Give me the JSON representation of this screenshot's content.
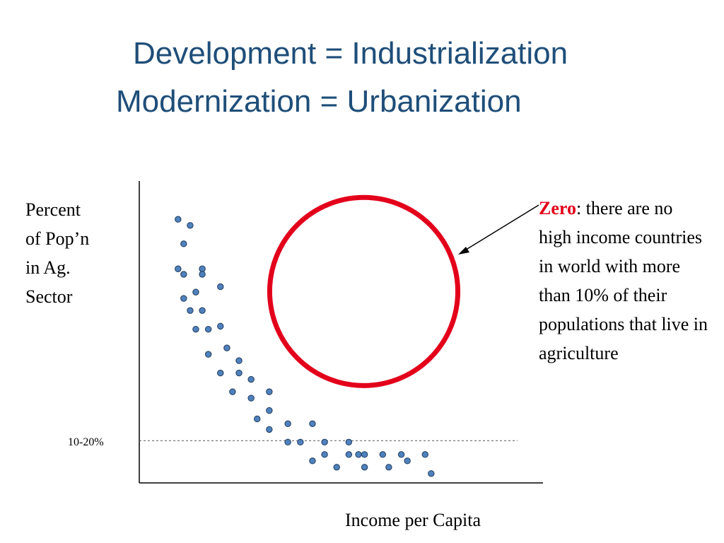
{
  "title": {
    "line1": "Development = Industrialization",
    "line2": "Modernization = Urbanization"
  },
  "chart_data": {
    "type": "scatter",
    "xlabel": "Income per Capita",
    "ylabel_lines": [
      "Percent",
      "of Pop’n",
      "in Ag.",
      "Sector"
    ],
    "xlim": [
      0,
      100
    ],
    "ylim": [
      0,
      100
    ],
    "reference_line": {
      "y": 14,
      "label": "10-20%"
    },
    "annotation": {
      "highlight": "Zero",
      "text": ": there are no high income countries in world with more than 10% of their populations that live in agriculture"
    },
    "highlight_circle": {
      "cx": 55.6,
      "cy": 63.4,
      "r": 23.3,
      "color": "#e3001b"
    },
    "point_color": "#4f81bd",
    "points": [
      {
        "x": 9.6,
        "y": 87.3
      },
      {
        "x": 12.6,
        "y": 85.3
      },
      {
        "x": 11.0,
        "y": 79.2
      },
      {
        "x": 9.6,
        "y": 70.9
      },
      {
        "x": 11.0,
        "y": 69.1
      },
      {
        "x": 15.6,
        "y": 70.9
      },
      {
        "x": 15.6,
        "y": 69.1
      },
      {
        "x": 20.1,
        "y": 65.0
      },
      {
        "x": 14.0,
        "y": 63.2
      },
      {
        "x": 11.0,
        "y": 61.1
      },
      {
        "x": 12.6,
        "y": 57.1
      },
      {
        "x": 15.6,
        "y": 57.1
      },
      {
        "x": 20.1,
        "y": 51.9
      },
      {
        "x": 14.0,
        "y": 50.9
      },
      {
        "x": 17.1,
        "y": 50.9
      },
      {
        "x": 21.7,
        "y": 44.7
      },
      {
        "x": 17.1,
        "y": 42.6
      },
      {
        "x": 24.7,
        "y": 40.5
      },
      {
        "x": 20.1,
        "y": 36.4
      },
      {
        "x": 24.7,
        "y": 36.4
      },
      {
        "x": 27.7,
        "y": 34.3
      },
      {
        "x": 23.1,
        "y": 30.2
      },
      {
        "x": 27.7,
        "y": 28.1
      },
      {
        "x": 32.2,
        "y": 30.2
      },
      {
        "x": 32.2,
        "y": 24.0
      },
      {
        "x": 29.2,
        "y": 21.2
      },
      {
        "x": 36.8,
        "y": 19.6
      },
      {
        "x": 32.2,
        "y": 17.7
      },
      {
        "x": 42.9,
        "y": 19.6
      },
      {
        "x": 36.8,
        "y": 13.5
      },
      {
        "x": 39.9,
        "y": 13.5
      },
      {
        "x": 45.9,
        "y": 13.5
      },
      {
        "x": 51.9,
        "y": 13.5
      },
      {
        "x": 42.9,
        "y": 7.3
      },
      {
        "x": 45.9,
        "y": 9.4
      },
      {
        "x": 48.9,
        "y": 5.2
      },
      {
        "x": 51.9,
        "y": 9.4
      },
      {
        "x": 54.3,
        "y": 9.4
      },
      {
        "x": 55.8,
        "y": 9.4
      },
      {
        "x": 55.8,
        "y": 5.2
      },
      {
        "x": 60.3,
        "y": 9.4
      },
      {
        "x": 61.8,
        "y": 5.2
      },
      {
        "x": 64.9,
        "y": 9.4
      },
      {
        "x": 66.4,
        "y": 7.3
      },
      {
        "x": 70.8,
        "y": 9.4
      },
      {
        "x": 72.3,
        "y": 3.1
      }
    ]
  }
}
